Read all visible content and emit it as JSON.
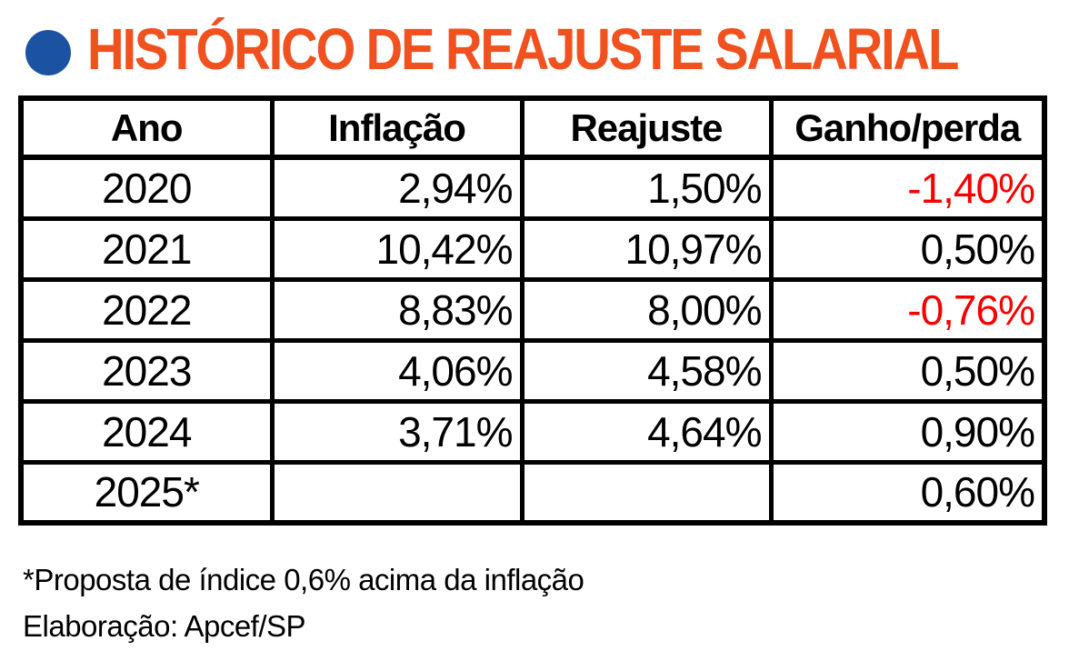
{
  "title": "HISTÓRICO DE REAJUSTE SALARIAL",
  "colors": {
    "accent_orange": "#F0511F",
    "bullet_blue": "#1B53A2",
    "negative_red": "#F60000",
    "border_black": "#000000",
    "background": "#FFFFFF"
  },
  "table": {
    "headers": [
      "Ano",
      "Inflação",
      "Reajuste",
      "Ganho/perda"
    ],
    "rows": [
      {
        "cells": [
          "2020",
          "2,94%",
          "1,50%",
          "-1,40%"
        ]
      },
      {
        "cells": [
          "2021",
          "10,42%",
          "10,97%",
          "0,50%"
        ]
      },
      {
        "cells": [
          "2022",
          "8,83%",
          "8,00%",
          "-0,76%"
        ]
      },
      {
        "cells": [
          "2023",
          "4,06%",
          "4,58%",
          "0,50%"
        ]
      },
      {
        "cells": [
          "2024",
          "3,71%",
          "4,64%",
          "0,90%"
        ]
      },
      {
        "cells": [
          "2025*",
          "",
          "",
          "0,60%"
        ]
      }
    ]
  },
  "footnotes": {
    "line1": "*Proposta de índice 0,6% acima da inflação",
    "line2": "Elaboração: Apcef/SP"
  },
  "chart_data": {
    "type": "table",
    "title": "HISTÓRICO DE REAJUSTE SALARIAL",
    "columns": [
      "Ano",
      "Inflação",
      "Reajuste",
      "Ganho/perda"
    ],
    "rows": [
      [
        "2020",
        "2,94%",
        "1,50%",
        "-1,40%"
      ],
      [
        "2021",
        "10,42%",
        "10,97%",
        "0,50%"
      ],
      [
        "2022",
        "8,83%",
        "8,00%",
        "-0,76%"
      ],
      [
        "2023",
        "4,06%",
        "4,58%",
        "0,50%"
      ],
      [
        "2024",
        "3,71%",
        "4,64%",
        "0,90%"
      ],
      [
        "2025*",
        "",
        "",
        "0,60%"
      ]
    ],
    "negative_cells": [
      [
        0,
        3
      ],
      [
        2,
        3
      ]
    ],
    "notes": [
      "*Proposta de índice 0,6% acima da inflação",
      "Elaboração: Apcef/SP"
    ],
    "source": "Apcef/SP"
  }
}
